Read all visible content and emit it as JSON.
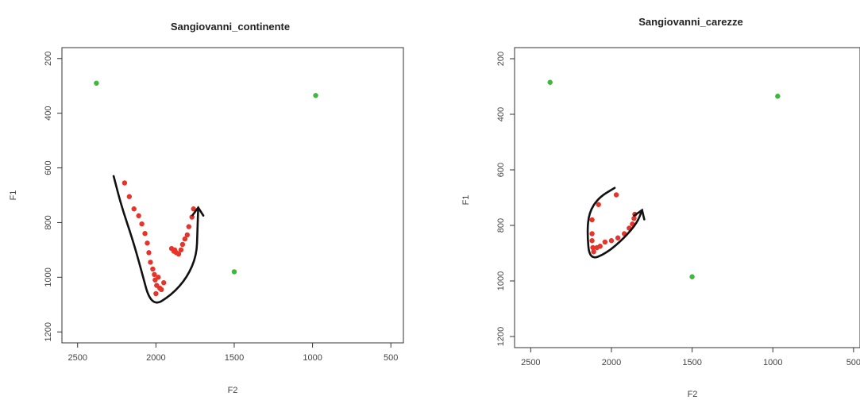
{
  "chart_data": [
    {
      "type": "scatter",
      "title": "Sangiovanni_continente",
      "xlabel": "F2",
      "ylabel": "F1",
      "xlim": [
        2600,
        420
      ],
      "ylim": [
        1240,
        160
      ],
      "x_reversed": true,
      "y_reversed": true,
      "xticks": [
        2500,
        2000,
        1500,
        1000,
        500
      ],
      "yticks": [
        200,
        400,
        600,
        800,
        1000,
        1200
      ],
      "grid": false,
      "series": [
        {
          "color": "#3db83a",
          "points": [
            [
              2380,
              290
            ],
            [
              980,
              335
            ],
            [
              1500,
              980
            ]
          ]
        },
        {
          "color": "#e8332a",
          "points": [
            [
              2200,
              655
            ],
            [
              2170,
              705
            ],
            [
              2140,
              750
            ],
            [
              2110,
              775
            ],
            [
              2090,
              805
            ],
            [
              2070,
              840
            ],
            [
              2055,
              875
            ],
            [
              2045,
              910
            ],
            [
              2035,
              945
            ],
            [
              2020,
              970
            ],
            [
              2010,
              990
            ],
            [
              2005,
              1010
            ],
            [
              1995,
              1030
            ],
            [
              2000,
              1060
            ],
            [
              1985,
              1000
            ],
            [
              1975,
              1040
            ],
            [
              1965,
              1045
            ],
            [
              1950,
              1020
            ],
            [
              1900,
              895
            ],
            [
              1885,
              905
            ],
            [
              1870,
              910
            ],
            [
              1855,
              915
            ],
            [
              1840,
              900
            ],
            [
              1830,
              880
            ],
            [
              1815,
              860
            ],
            [
              1800,
              845
            ],
            [
              1790,
              815
            ],
            [
              1770,
              780
            ],
            [
              1760,
              750
            ],
            [
              1880,
              900
            ]
          ]
        }
      ],
      "annotation_path": [
        [
          2270,
          630
        ],
        [
          2220,
          740
        ],
        [
          2150,
          860
        ],
        [
          2100,
          960
        ],
        [
          2030,
          1110
        ],
        [
          1900,
          1065
        ],
        [
          1800,
          1000
        ],
        [
          1740,
          920
        ],
        [
          1735,
          830
        ],
        [
          1730,
          745
        ]
      ]
    },
    {
      "type": "scatter",
      "title": "Sangiovanni_carezze",
      "xlabel": "F2",
      "ylabel": "F1",
      "xlim": [
        2600,
        460
      ],
      "ylim": [
        1240,
        160
      ],
      "x_reversed": true,
      "y_reversed": true,
      "xticks": [
        2500,
        2000,
        1500,
        1000,
        500
      ],
      "yticks": [
        200,
        400,
        600,
        800,
        1000,
        1200
      ],
      "grid": false,
      "series": [
        {
          "color": "#3db83a",
          "points": [
            [
              2380,
              285
            ],
            [
              970,
              335
            ],
            [
              1500,
              985
            ]
          ]
        },
        {
          "color": "#e8332a",
          "points": [
            [
              1970,
              690
            ],
            [
              2080,
              725
            ],
            [
              2120,
              780
            ],
            [
              2120,
              830
            ],
            [
              2120,
              855
            ],
            [
              2115,
              880
            ],
            [
              2110,
              895
            ],
            [
              2090,
              880
            ],
            [
              2070,
              875
            ],
            [
              2040,
              860
            ],
            [
              2000,
              855
            ],
            [
              1960,
              845
            ],
            [
              1920,
              830
            ],
            [
              1890,
              810
            ],
            [
              1870,
              795
            ],
            [
              1860,
              775
            ],
            [
              1855,
              760
            ]
          ]
        }
      ],
      "annotation_path": [
        [
          1980,
          665
        ],
        [
          2080,
          700
        ],
        [
          2140,
          755
        ],
        [
          2150,
          830
        ],
        [
          2135,
          925
        ],
        [
          2030,
          900
        ],
        [
          1920,
          845
        ],
        [
          1840,
          790
        ],
        [
          1810,
          745
        ]
      ]
    }
  ]
}
